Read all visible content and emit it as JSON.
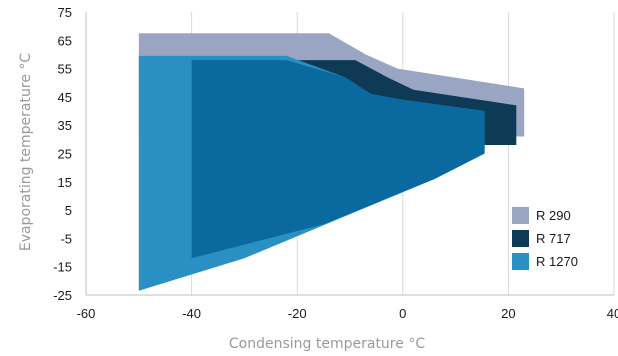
{
  "chart_data": {
    "type": "area",
    "title": "",
    "xlabel": "Condensing temperature °C",
    "ylabel": "Evaporating temperature °C",
    "xlim": [
      -60,
      40
    ],
    "ylim": [
      -25,
      75
    ],
    "xticks": [
      -60,
      -40,
      -20,
      0,
      20,
      40
    ],
    "xtick_labels": [
      "-60",
      "-40",
      "-20",
      "0",
      "20",
      "40"
    ],
    "yticks": [
      75,
      65,
      55,
      45,
      35,
      25,
      15,
      5,
      -5,
      -15,
      -25
    ],
    "ytick_labels": [
      "75",
      "65",
      "55",
      "45",
      "35",
      "25",
      "15",
      "5",
      "-5",
      "-15",
      "-25"
    ],
    "grid": "vertical gridlines",
    "legend_position": "bottom-right",
    "series": [
      {
        "name": "R 290",
        "color": "#9aa5c4",
        "points": [
          [
            -50,
            67.5
          ],
          [
            -14,
            67.5
          ],
          [
            -7,
            60
          ],
          [
            -1,
            55
          ],
          [
            23,
            48
          ],
          [
            23,
            31
          ],
          [
            -50,
            31
          ]
        ]
      },
      {
        "name": "R 717",
        "color": "#0f3a55",
        "points": [
          [
            -40,
            58
          ],
          [
            -9,
            58
          ],
          [
            -3,
            52
          ],
          [
            2,
            47.5
          ],
          [
            21.5,
            42
          ],
          [
            21.5,
            28
          ],
          [
            -40,
            28
          ]
        ]
      },
      {
        "name": "R 1270",
        "color": "#2a90c4",
        "points": [
          [
            -50,
            59.5
          ],
          [
            -22,
            59.5
          ],
          [
            -11,
            52
          ],
          [
            -6,
            46
          ],
          [
            0,
            44
          ],
          [
            15.5,
            40
          ],
          [
            15.5,
            25
          ],
          [
            6,
            16
          ],
          [
            -12,
            2
          ],
          [
            -30,
            -12
          ],
          [
            -50,
            -23.5
          ]
        ]
      }
    ],
    "inner_overlap": {
      "color": "#0a6aa0",
      "points": [
        [
          -40,
          58
        ],
        [
          -22,
          58
        ],
        [
          -11,
          52
        ],
        [
          -6,
          46
        ],
        [
          0,
          44
        ],
        [
          15.5,
          40
        ],
        [
          15.5,
          25
        ],
        [
          6,
          16
        ],
        [
          -15,
          0
        ],
        [
          -40,
          -12
        ]
      ]
    }
  }
}
